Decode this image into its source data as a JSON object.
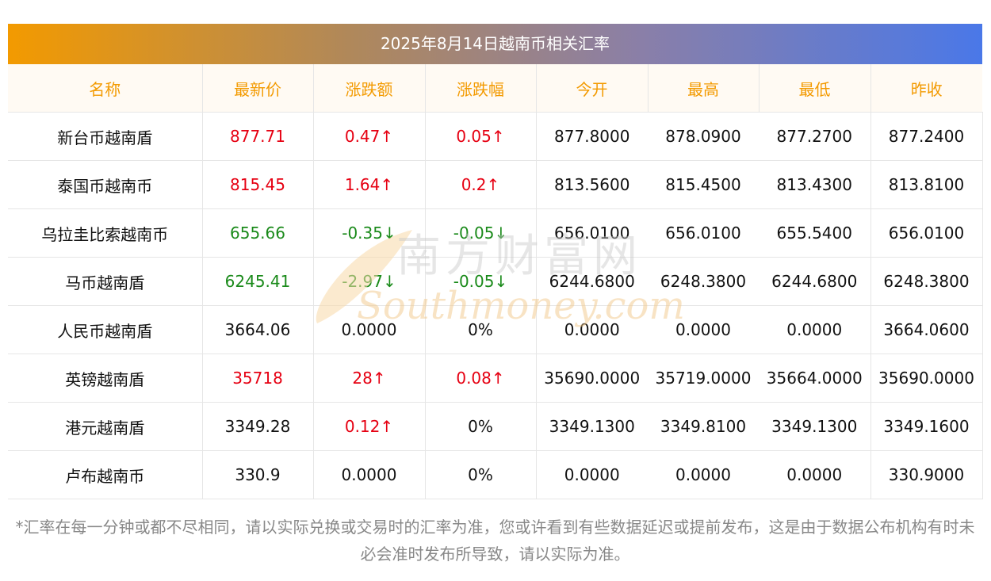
{
  "title": "2025年8月14日越南币相关汇率",
  "watermark": {
    "cn": "南方财富网",
    "en": "Southmoney.com"
  },
  "columns": [
    "名称",
    "最新价",
    "涨跌额",
    "涨跌幅",
    "今开",
    "最高",
    "最低",
    "昨收"
  ],
  "rows": [
    {
      "name": "新台币越南盾",
      "price": "877.71",
      "change": "0.47↑",
      "pct": "0.05↑",
      "open": "877.8000",
      "high": "878.0900",
      "low": "877.2700",
      "prev": "877.2400",
      "trend": "up"
    },
    {
      "name": "泰国币越南币",
      "price": "815.45",
      "change": "1.64↑",
      "pct": "0.2↑",
      "open": "813.5600",
      "high": "815.4500",
      "low": "813.4300",
      "prev": "813.8100",
      "trend": "up"
    },
    {
      "name": "乌拉圭比索越南币",
      "price": "655.66",
      "change": "-0.35↓",
      "pct": "-0.05↓",
      "open": "656.0100",
      "high": "656.0100",
      "low": "655.5400",
      "prev": "656.0100",
      "trend": "down"
    },
    {
      "name": "马币越南盾",
      "price": "6245.41",
      "change": "-2.97↓",
      "pct": "-0.05↓",
      "open": "6244.6800",
      "high": "6248.3800",
      "low": "6244.6800",
      "prev": "6248.3800",
      "trend": "down"
    },
    {
      "name": "人民币越南盾",
      "price": "3664.06",
      "change": "0.0000",
      "pct": "0%",
      "open": "0.0000",
      "high": "0.0000",
      "low": "0.0000",
      "prev": "3664.0600",
      "trend": "flat"
    },
    {
      "name": "英镑越南盾",
      "price": "35718",
      "change": "28↑",
      "pct": "0.08↑",
      "open": "35690.0000",
      "high": "35719.0000",
      "low": "35664.0000",
      "prev": "35690.0000",
      "trend": "up"
    },
    {
      "name": "港元越南盾",
      "price": "3349.28",
      "change": "0.12↑",
      "pct": "0%",
      "open": "3349.1300",
      "high": "3349.8100",
      "low": "3349.1300",
      "prev": "3349.1600",
      "trend": "up-nopct"
    },
    {
      "name": "卢布越南币",
      "price": "330.9",
      "change": "0.0000",
      "pct": "0%",
      "open": "0.0000",
      "high": "0.0000",
      "low": "0.0000",
      "prev": "330.9000",
      "trend": "flat"
    }
  ],
  "note": "*汇率在每一分钟或都不尽相同，请以实际兑换或交易时的汇率为准，您或许看到有些数据延迟或提前发布，这是由于数据公布机构有时未必会准时发布所导致，请以实际为准。",
  "colors": {
    "up": "#e60012",
    "down": "#1a8a1a",
    "header_text": "#f39a00",
    "gradient_start": "#f39a00",
    "gradient_end": "#4a78e8"
  }
}
